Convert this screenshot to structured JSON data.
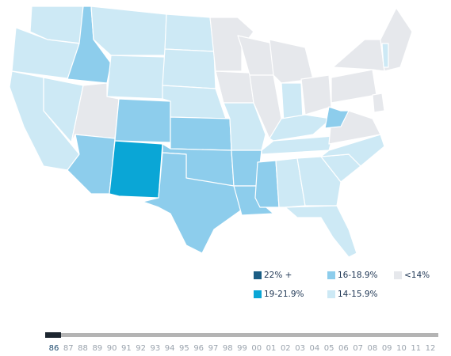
{
  "legend": [
    {
      "label": "22% +",
      "color": "#1b5d84"
    },
    {
      "label": "16-18.9%",
      "color": "#8dcdec"
    },
    {
      "label": "<14%",
      "color": "#e6e8ec"
    },
    {
      "label": "19-21.9%",
      "color": "#0aa6d6"
    },
    {
      "label": "14-15.9%",
      "color": "#cde9f5"
    }
  ],
  "timeline": {
    "years": [
      "86",
      "87",
      "88",
      "89",
      "90",
      "91",
      "92",
      "93",
      "94",
      "95",
      "96",
      "97",
      "98",
      "99",
      "00",
      "01",
      "02",
      "03",
      "04",
      "05",
      "06",
      "07",
      "08",
      "09",
      "10",
      "11",
      "12"
    ],
    "selected": 0
  }
}
